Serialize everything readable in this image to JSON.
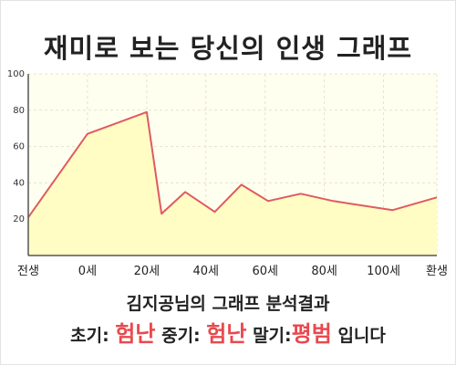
{
  "chart_data": {
    "type": "area",
    "title": "재미로 보는 당신의 인생 그래프",
    "xlabel": "",
    "ylabel": "",
    "x_ticks": [
      "전생",
      "0세",
      "20세",
      "40세",
      "60세",
      "80세",
      "100세",
      "환생"
    ],
    "y_ticks": [
      "20",
      "40",
      "60",
      "80",
      "100"
    ],
    "ylim": [
      0,
      100
    ],
    "xlim": [
      "전생",
      "환생"
    ],
    "grid": true,
    "x": [
      "전생",
      "0세",
      "20세",
      "25세",
      "33세",
      "43세",
      "52세",
      "61세",
      "72세",
      "83세",
      "103세",
      "환생"
    ],
    "values": [
      21,
      67,
      79,
      23,
      35,
      24,
      39,
      30,
      34,
      30,
      25,
      32
    ],
    "colors": {
      "line": "#e05a60",
      "fill": "#fffdc4",
      "plot_bg": "#fffff0",
      "grid": "#e4e4c8"
    }
  },
  "result": {
    "subtitle": "김지공님의 그래프 분석결과",
    "early_label": "초기:",
    "early_value": "험난",
    "middle_label": "중기:",
    "middle_value": "험난",
    "late_label": "말기:",
    "late_value": "평범",
    "ending": "입니다"
  }
}
